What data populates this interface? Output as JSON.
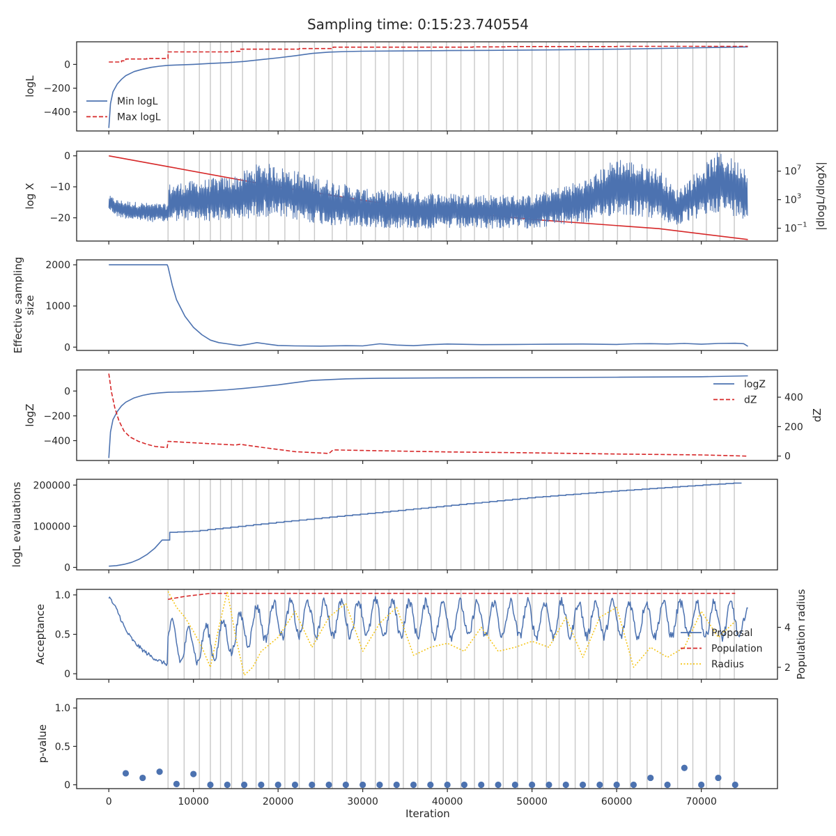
{
  "title": "Sampling time: 0:15:23.740554",
  "colors": {
    "blue": "#4c72b0",
    "red": "#d62728",
    "yellow": "#f5c518",
    "vline": "#c8c8c8",
    "frame": "#262626"
  },
  "chart_data": [
    {
      "type": "line",
      "ylabel": "logL",
      "ylim": [
        -560,
        190
      ],
      "yticks": [
        0,
        -200,
        -400
      ],
      "grid": false,
      "legend": "lower-left",
      "series": [
        {
          "name": "Min logL",
          "style": "solid",
          "color": "#4c72b0",
          "x": [
            0,
            200,
            500,
            1000,
            1500,
            2000,
            3000,
            4000,
            5000,
            6000,
            7000,
            8000,
            10000,
            12000,
            14000,
            16000,
            18000,
            20000,
            22000,
            24000,
            26000,
            28000,
            30000,
            35000,
            40000,
            45000,
            50000,
            55000,
            60000,
            65000,
            70000,
            75500
          ],
          "y": [
            -535,
            -330,
            -230,
            -165,
            -125,
            -95,
            -60,
            -40,
            -25,
            -15,
            -8,
            -5,
            0,
            8,
            15,
            25,
            40,
            55,
            72,
            92,
            103,
            108,
            111,
            113,
            116,
            118,
            121,
            124,
            128,
            134,
            140,
            147
          ]
        },
        {
          "name": "Max logL",
          "style": "dashed",
          "color": "#d62728",
          "x": [
            0,
            1500,
            1500,
            2000,
            2000,
            4500,
            4500,
            7000,
            7000,
            14500,
            14500,
            15500,
            15500,
            22500,
            22500,
            26500,
            26500,
            43000,
            43000,
            47000,
            47000,
            60000,
            60000,
            75500
          ],
          "y": [
            20,
            20,
            30,
            30,
            45,
            45,
            50,
            50,
            105,
            105,
            110,
            110,
            128,
            128,
            133,
            133,
            145,
            145,
            147,
            147,
            150,
            150,
            152,
            152
          ]
        }
      ]
    },
    {
      "type": "line",
      "ylabel": "log X",
      "ylabel_right": "|dlogL/dlogX|",
      "ylim": [
        -27.5,
        1.5
      ],
      "yticks": [
        0,
        -10,
        -20
      ],
      "y2_log": true,
      "y2_log_range": [
        -2.8,
        9.8
      ],
      "y2_ticks": [
        "10^7",
        "10^3",
        "10^-1"
      ],
      "grid": false,
      "series": [
        {
          "name": "log X",
          "style": "solid",
          "color": "#d62728",
          "x": [
            0,
            7000,
            20000,
            35000,
            50000,
            65000,
            75500
          ],
          "y": [
            0,
            -3.5,
            -10,
            -16.5,
            -20.5,
            -23.5,
            -27
          ]
        },
        {
          "name": "|dlogL/dlogX|",
          "style": "solid",
          "color": "#4c72b0",
          "axis": "right",
          "noisy": true,
          "x": [
            0,
            1000,
            3000,
            5000,
            7000,
            7000,
            15000,
            18000,
            22000,
            26000,
            30000,
            40000,
            50000,
            57000,
            60000,
            65000,
            67000,
            72000,
            75500
          ],
          "y_center_log10": [
            2.6,
            1.8,
            1.4,
            1.2,
            1.1,
            2.6,
            3.2,
            4.5,
            3.6,
            2.6,
            1.8,
            1.4,
            1.3,
            3.0,
            5.0,
            3.8,
            1.8,
            5.5,
            4.0
          ],
          "y_amp_log10": [
            1.0,
            1.2,
            1.3,
            1.3,
            1.3,
            2.6,
            3.2,
            3.8,
            3.5,
            3.2,
            2.7,
            2.5,
            2.3,
            3.2,
            4.0,
            3.6,
            2.5,
            4.2,
            3.8
          ]
        }
      ]
    },
    {
      "type": "line",
      "ylabel": "Effective sampling size",
      "ylabel_lines": [
        "Effective sampling",
        "size"
      ],
      "ylim": [
        -80,
        2120
      ],
      "yticks": [
        2000,
        1000,
        0
      ],
      "grid": false,
      "series": [
        {
          "name": "Effective sampling size",
          "style": "solid",
          "color": "#4c72b0",
          "x": [
            0,
            6900,
            7000,
            7500,
            8000,
            9000,
            10000,
            11000,
            12000,
            13000,
            14000,
            15000,
            15500,
            16500,
            17500,
            18500,
            20000,
            22000,
            25000,
            28000,
            30000,
            32000,
            34000,
            36000,
            38000,
            40000,
            44000,
            48000,
            52000,
            56000,
            60000,
            62000,
            64000,
            66000,
            68000,
            70000,
            72000,
            74000,
            75000,
            75500
          ],
          "y": [
            2000,
            2000,
            1950,
            1500,
            1150,
            750,
            480,
            300,
            170,
            110,
            80,
            50,
            40,
            70,
            110,
            80,
            40,
            30,
            25,
            35,
            30,
            80,
            50,
            35,
            60,
            75,
            60,
            65,
            70,
            75,
            65,
            80,
            85,
            75,
            90,
            70,
            90,
            95,
            85,
            20
          ]
        }
      ]
    },
    {
      "type": "line",
      "ylabel": "logZ",
      "ylabel_right": "dZ",
      "ylim": [
        -560,
        170
      ],
      "yticks": [
        0,
        -200,
        -400
      ],
      "y2lim": [
        -30,
        585
      ],
      "y2_ticks": [
        400,
        200,
        0
      ],
      "grid": false,
      "legend": "upper-right",
      "series": [
        {
          "name": "logZ",
          "style": "solid",
          "color": "#4c72b0",
          "x": [
            0,
            200,
            500,
            1000,
            1500,
            2000,
            3000,
            4000,
            5000,
            6000,
            7000,
            10000,
            12000,
            14000,
            16000,
            18000,
            20000,
            22000,
            24000,
            28000,
            32000,
            40000,
            50000,
            60000,
            70000,
            75500
          ],
          "y": [
            -540,
            -330,
            -230,
            -165,
            -120,
            -90,
            -55,
            -35,
            -22,
            -15,
            -10,
            -5,
            2,
            10,
            22,
            35,
            50,
            68,
            85,
            98,
            103,
            106,
            108,
            111,
            115,
            122
          ]
        },
        {
          "name": "dZ",
          "style": "dashed",
          "color": "#d62728",
          "axis": "right",
          "x": [
            0,
            300,
            700,
            1200,
            1800,
            2500,
            3500,
            4500,
            5500,
            6900,
            7000,
            10000,
            15000,
            15500,
            18000,
            22000,
            26000,
            26500,
            30000,
            40000,
            50000,
            60000,
            70000,
            75500
          ],
          "y": [
            560,
            440,
            330,
            240,
            170,
            130,
            100,
            80,
            65,
            58,
            100,
            90,
            75,
            80,
            60,
            30,
            18,
            42,
            38,
            28,
            22,
            14,
            8,
            0
          ]
        }
      ]
    },
    {
      "type": "line",
      "ylabel": "logL evaluations",
      "ylim": [
        -6000,
        214000
      ],
      "yticks": [
        200000,
        100000,
        0
      ],
      "grid": false,
      "series": [
        {
          "name": "logL evaluations",
          "style": "solid",
          "color": "#4c72b0",
          "stepped": true,
          "x": [
            0,
            1000,
            2000,
            3000,
            4000,
            5000,
            6000,
            6500,
            7000,
            10000,
            20000,
            30000,
            40000,
            50000,
            60000,
            70000,
            75500
          ],
          "y": [
            3000,
            4500,
            8000,
            14000,
            24000,
            38000,
            58000,
            72000,
            85000,
            88000,
            110000,
            130000,
            150000,
            170000,
            186000,
            200000,
            207000
          ]
        }
      ]
    },
    {
      "type": "line",
      "ylabel": "Acceptance",
      "ylabel_right": "Population radius",
      "ylim": [
        -0.07,
        1.07
      ],
      "yticks": [
        1.0,
        0.5,
        0.0
      ],
      "y2lim": [
        1.4,
        5.9
      ],
      "y2_ticks": [
        4,
        2
      ],
      "grid": false,
      "legend": "lower-right",
      "series": [
        {
          "name": "Proposal",
          "style": "solid",
          "color": "#4c72b0",
          "noisy_accept": true,
          "x": [
            0,
            1000,
            2000,
            3000,
            4000,
            5000,
            6000,
            6900,
            7000,
            9000,
            11000,
            13000,
            15000,
            17000,
            20000,
            30000,
            40000,
            50000,
            60000,
            70000,
            75000,
            75500
          ],
          "y": [
            0.98,
            0.8,
            0.55,
            0.4,
            0.3,
            0.22,
            0.16,
            0.12,
            0.5,
            0.4,
            0.42,
            0.48,
            0.55,
            0.68,
            0.74,
            0.76,
            0.74,
            0.74,
            0.74,
            0.74,
            0.72,
            0.66
          ]
        },
        {
          "name": "Population",
          "style": "dashed",
          "color": "#d62728",
          "axis": "right",
          "x": [
            7000,
            9000,
            11000,
            12000,
            74000
          ],
          "y": [
            5.4,
            5.55,
            5.65,
            5.7,
            5.7
          ]
        },
        {
          "name": "Radius",
          "style": "dotted",
          "color": "#f5c518",
          "axis": "right",
          "x": [
            7000,
            8000,
            9000,
            10000,
            11000,
            12000,
            13000,
            14000,
            15000,
            16000,
            17000,
            18000,
            20000,
            22000,
            24000,
            26000,
            28000,
            30000,
            32000,
            34000,
            36000,
            38000,
            40000,
            42000,
            44000,
            46000,
            48000,
            50000,
            52000,
            54000,
            56000,
            58000,
            60000,
            62000,
            64000,
            66000,
            68000,
            70000,
            72000,
            74000
          ],
          "y": [
            5.8,
            5.0,
            4.5,
            3.8,
            3.0,
            2.0,
            4.0,
            5.8,
            3.5,
            1.6,
            2.0,
            2.8,
            3.5,
            4.8,
            3.0,
            4.5,
            5.2,
            2.8,
            4.2,
            5.0,
            2.6,
            3.0,
            3.2,
            2.8,
            4.0,
            2.8,
            3.0,
            3.3,
            3.0,
            4.5,
            2.5,
            4.5,
            5.0,
            2.0,
            3.0,
            2.5,
            3.0,
            4.8,
            3.5,
            4.3
          ]
        }
      ]
    },
    {
      "type": "scatter",
      "ylabel": "p-value",
      "xlabel": "Iteration",
      "ylim": [
        -0.05,
        1.12
      ],
      "yticks": [
        1.0,
        0.5,
        0.0
      ],
      "grid": false,
      "series": [
        {
          "name": "p-value",
          "color": "#4c72b0",
          "x": [
            2000,
            4000,
            6000,
            8000,
            10000,
            12000,
            14000,
            16000,
            18000,
            20000,
            22000,
            24000,
            26000,
            28000,
            30000,
            32000,
            34000,
            36000,
            38000,
            40000,
            42000,
            44000,
            46000,
            48000,
            50000,
            52000,
            54000,
            56000,
            58000,
            60000,
            62000,
            64000,
            66000,
            68000,
            70000,
            72000,
            74000
          ],
          "y": [
            0.15,
            0.09,
            0.17,
            0.01,
            0.14,
            0.0,
            0.0,
            0.0,
            0.0,
            0.0,
            0.0,
            0.0,
            0.0,
            0.0,
            0.0,
            0.0,
            0.0,
            0.0,
            0.0,
            0.0,
            0.0,
            0.0,
            0.0,
            0.0,
            0.0,
            0.0,
            0.0,
            0.0,
            0.0,
            0.0,
            0.0,
            0.09,
            0.0,
            0.22,
            0.0,
            0.09,
            0.0
          ]
        }
      ]
    }
  ],
  "shared_x": {
    "xlim": [
      -3800,
      79000
    ],
    "xticks": [
      0,
      10000,
      20000,
      30000,
      40000,
      50000,
      60000,
      70000
    ],
    "xlabel": "Iteration",
    "vlines": [
      7000,
      8900,
      10700,
      12000,
      13200,
      14500,
      15800,
      17400,
      18900,
      20800,
      22500,
      24300,
      26400,
      28100,
      29800,
      31500,
      33100,
      34800,
      36500,
      38100,
      39900,
      41600,
      43200,
      44900,
      46600,
      48300,
      50000,
      51700,
      53200,
      55100,
      56700,
      58400,
      60100,
      61600,
      63600,
      65300,
      67200,
      69000,
      70600,
      72200,
      73900
    ]
  }
}
